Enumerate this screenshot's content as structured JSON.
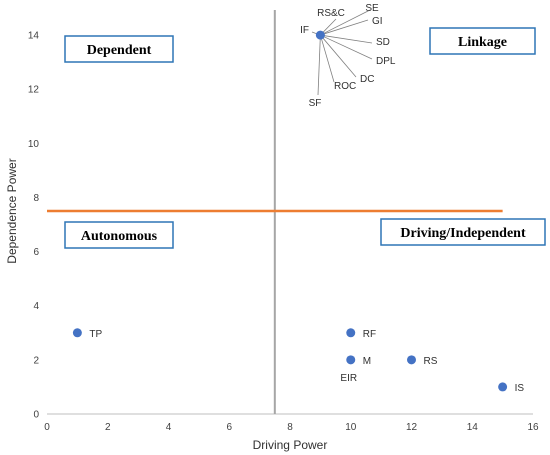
{
  "chart_data": {
    "type": "scatter",
    "xlabel": "Driving Power",
    "ylabel": "Dependence Power",
    "xlim": [
      0,
      16
    ],
    "ylim": [
      0,
      15
    ],
    "xticks": [
      0,
      2,
      4,
      6,
      8,
      10,
      12,
      14,
      16
    ],
    "yticks": [
      0,
      2,
      4,
      6,
      8,
      10,
      12,
      14
    ],
    "grid": false,
    "divider_x": 7.5,
    "divider_y": 7.5,
    "colors": {
      "point": "#4472c4",
      "vertical_divider": "#a6a6a6",
      "horizontal_divider": "#ed7d31",
      "quadrant_border": "#2e75b6"
    },
    "quadrants": [
      {
        "label": "Dependent"
      },
      {
        "label": "Linkage"
      },
      {
        "label": "Autonomous"
      },
      {
        "label": "Driving/Independent"
      }
    ],
    "points": [
      {
        "label": "TP",
        "x": 1,
        "y": 3
      },
      {
        "label": "RF",
        "x": 10,
        "y": 3
      },
      {
        "label": "M",
        "x": 10,
        "y": 2
      },
      {
        "label": "EIR",
        "x": 10,
        "y": 2
      },
      {
        "label": "RS",
        "x": 12,
        "y": 2
      },
      {
        "label": "IS",
        "x": 15,
        "y": 1
      }
    ],
    "cluster": {
      "x": 9,
      "y": 14,
      "labels": [
        "IF",
        "RS&C",
        "SE",
        "GI",
        "SD",
        "DPL",
        "DC",
        "ROC",
        "SF"
      ]
    }
  }
}
